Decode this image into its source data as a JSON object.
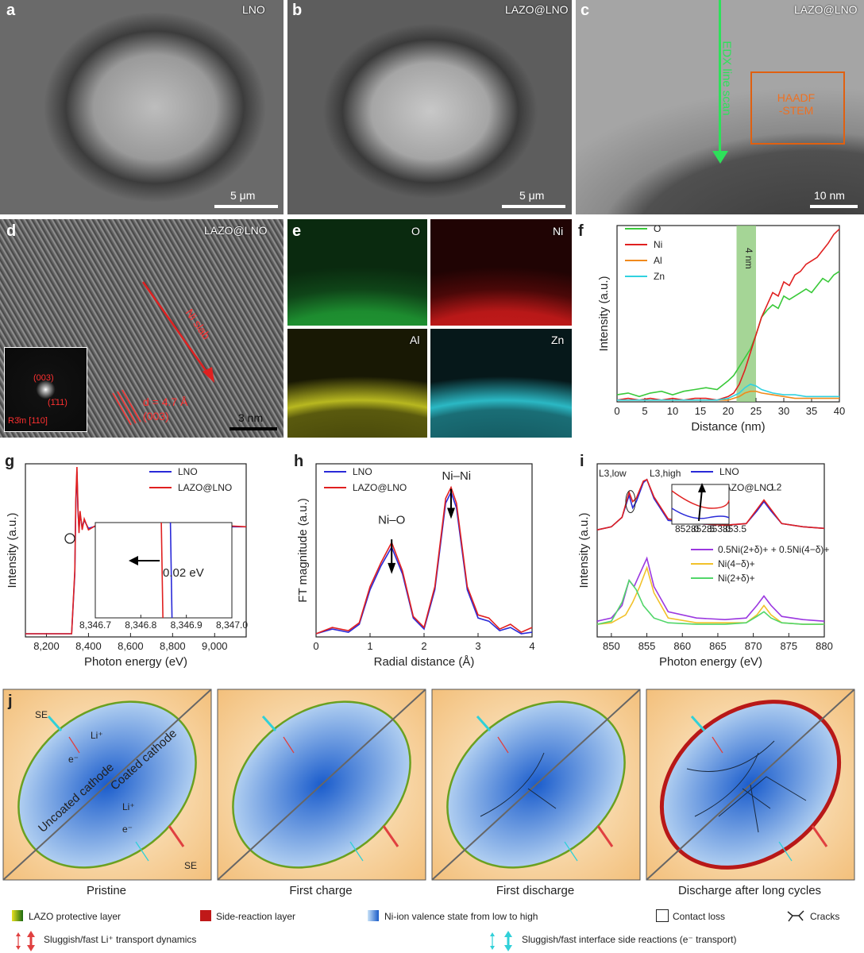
{
  "panels": {
    "a": {
      "label": "a",
      "tag": "LNO",
      "scale": "5 μm"
    },
    "b": {
      "label": "b",
      "tag": "LAZO@LNO",
      "scale": "5 μm"
    },
    "c": {
      "label": "c",
      "tag": "LAZO@LNO",
      "scale": "10 nm",
      "edx": "EDX line scan",
      "haadf": "HAADF\n-STEM"
    },
    "d": {
      "label": "d",
      "tag": "LAZO@LNO",
      "scale": "3 nm",
      "slab": "Ni slab",
      "dspacing": "d = 4.7 Å",
      "plane": "(003)",
      "inset_003": "(003)",
      "inset_111": "(1̄11)",
      "inset_zone": "R3̄m [110]"
    },
    "e": {
      "label": "e",
      "maps": [
        "O",
        "Ni",
        "Al",
        "Zn"
      ]
    },
    "f": {
      "label": "f",
      "band": "4 nm"
    },
    "g": {
      "label": "g",
      "inset_note": "0.02 eV"
    },
    "h": {
      "label": "h",
      "peak1": "Ni–O",
      "peak2": "Ni–Ni"
    },
    "i": {
      "label": "i",
      "l3low": "L3,low",
      "l3high": "L3,high",
      "l2": "L2"
    },
    "j": {
      "label": "j"
    }
  },
  "chart_data": [
    {
      "id": "f",
      "type": "line",
      "title": "",
      "xlabel": "Distance (nm)",
      "ylabel": "Intensity (a.u.)",
      "xlim": [
        0,
        40
      ],
      "ylim": [
        0,
        1
      ],
      "xticks": [
        0,
        5,
        10,
        15,
        20,
        25,
        30,
        35,
        40
      ],
      "highlight": [
        21.5,
        25
      ],
      "series": [
        {
          "name": "O",
          "color": "#3ac93a",
          "x": [
            0,
            2,
            4,
            6,
            8,
            10,
            12,
            14,
            16,
            18,
            20,
            21,
            22,
            23,
            24,
            25,
            26,
            27,
            28,
            29,
            30,
            31,
            32,
            33,
            34,
            35,
            36,
            37,
            38,
            39,
            40
          ],
          "y": [
            0.04,
            0.05,
            0.03,
            0.05,
            0.06,
            0.04,
            0.06,
            0.07,
            0.08,
            0.07,
            0.12,
            0.15,
            0.2,
            0.25,
            0.3,
            0.38,
            0.48,
            0.52,
            0.55,
            0.53,
            0.6,
            0.58,
            0.6,
            0.62,
            0.64,
            0.62,
            0.66,
            0.7,
            0.68,
            0.72,
            0.74
          ]
        },
        {
          "name": "Ni",
          "color": "#e02020",
          "x": [
            0,
            2,
            4,
            6,
            8,
            10,
            12,
            14,
            16,
            18,
            20,
            21,
            22,
            23,
            24,
            25,
            26,
            27,
            28,
            29,
            30,
            31,
            32,
            33,
            34,
            35,
            36,
            37,
            38,
            39,
            40
          ],
          "y": [
            0.01,
            0.02,
            0.01,
            0.02,
            0.01,
            0.02,
            0.01,
            0.02,
            0.02,
            0.01,
            0.03,
            0.05,
            0.1,
            0.18,
            0.28,
            0.38,
            0.48,
            0.55,
            0.62,
            0.6,
            0.68,
            0.66,
            0.72,
            0.74,
            0.78,
            0.8,
            0.82,
            0.86,
            0.9,
            0.95,
            0.98
          ]
        },
        {
          "name": "Al",
          "color": "#f08a1c",
          "x": [
            0,
            2,
            4,
            6,
            8,
            10,
            12,
            14,
            16,
            18,
            20,
            22,
            23,
            24,
            25,
            26,
            28,
            30,
            32,
            34,
            36,
            38,
            40
          ],
          "y": [
            0.01,
            0.01,
            0.01,
            0.01,
            0.01,
            0.01,
            0.01,
            0.01,
            0.01,
            0.01,
            0.01,
            0.03,
            0.05,
            0.06,
            0.06,
            0.05,
            0.04,
            0.03,
            0.02,
            0.02,
            0.02,
            0.02,
            0.02
          ]
        },
        {
          "name": "Zn",
          "color": "#31d2e0",
          "x": [
            0,
            2,
            4,
            6,
            8,
            10,
            12,
            14,
            16,
            18,
            20,
            22,
            23,
            24,
            25,
            26,
            28,
            30,
            32,
            34,
            36,
            38,
            40
          ],
          "y": [
            0.01,
            0.01,
            0.01,
            0.01,
            0.01,
            0.01,
            0.01,
            0.01,
            0.01,
            0.01,
            0.02,
            0.05,
            0.08,
            0.1,
            0.09,
            0.07,
            0.05,
            0.04,
            0.04,
            0.03,
            0.03,
            0.03,
            0.03
          ]
        }
      ]
    },
    {
      "id": "g",
      "type": "line",
      "xlabel": "Photon energy (eV)",
      "ylabel": "Intensity (a.u.)",
      "xlim": [
        8100,
        9150
      ],
      "ylim": [
        0,
        1.1
      ],
      "xticks": [
        8200,
        8400,
        8600,
        8800,
        9000
      ],
      "xtick_labels": [
        "8,200",
        "8,400",
        "8,600",
        "8,800",
        "9,000"
      ],
      "series": [
        {
          "name": "LNO",
          "color": "#2a2ad8",
          "x": [
            8100,
            8320,
            8335,
            8340,
            8345,
            8350,
            8355,
            8360,
            8370,
            8380,
            8400,
            8450,
            8500,
            8600,
            8800,
            9000,
            9150
          ],
          "y": [
            0.02,
            0.02,
            0.4,
            0.85,
            1.05,
            0.8,
            0.68,
            0.78,
            0.7,
            0.74,
            0.69,
            0.71,
            0.7,
            0.7,
            0.7,
            0.7,
            0.7
          ]
        },
        {
          "name": "LAZO@LNO",
          "color": "#e02020",
          "x": [
            8100,
            8320,
            8335,
            8340,
            8345,
            8350,
            8355,
            8360,
            8370,
            8380,
            8400,
            8450,
            8500,
            8600,
            8800,
            9000,
            9150
          ],
          "y": [
            0.02,
            0.02,
            0.42,
            0.88,
            1.08,
            0.82,
            0.66,
            0.8,
            0.68,
            0.75,
            0.68,
            0.72,
            0.69,
            0.71,
            0.7,
            0.71,
            0.7
          ]
        }
      ],
      "inset": {
        "xlim": [
          8346.7,
          8347.0
        ],
        "xticks": [
          8346.7,
          8346.8,
          8346.9,
          8347.0
        ],
        "xtick_labels": [
          "8,346.7",
          "8,346.8",
          "8,346.9",
          "8,347.0"
        ],
        "LNO_edge": 8346.865,
        "LAZO_edge": 8346.845
      }
    },
    {
      "id": "h",
      "type": "line",
      "xlabel": "Radial distance (Å)",
      "ylabel": "FT magnitude (a.u.)",
      "xlim": [
        0,
        4
      ],
      "ylim": [
        0,
        1.1
      ],
      "xticks": [
        0,
        1,
        2,
        3,
        4
      ],
      "series": [
        {
          "name": "LNO",
          "color": "#2a2ad8",
          "x": [
            0,
            0.3,
            0.6,
            0.8,
            1.0,
            1.2,
            1.4,
            1.6,
            1.8,
            2.0,
            2.2,
            2.4,
            2.5,
            2.6,
            2.8,
            3.0,
            3.2,
            3.4,
            3.6,
            3.8,
            4.0
          ],
          "y": [
            0.02,
            0.05,
            0.03,
            0.08,
            0.3,
            0.45,
            0.57,
            0.4,
            0.12,
            0.05,
            0.3,
            0.85,
            0.92,
            0.82,
            0.3,
            0.12,
            0.1,
            0.04,
            0.06,
            0.02,
            0.03
          ]
        },
        {
          "name": "LAZO@LNO",
          "color": "#e02020",
          "x": [
            0,
            0.3,
            0.6,
            0.8,
            1.0,
            1.2,
            1.4,
            1.6,
            1.8,
            2.0,
            2.2,
            2.4,
            2.5,
            2.6,
            2.8,
            3.0,
            3.2,
            3.4,
            3.6,
            3.8,
            4.0
          ],
          "y": [
            0.02,
            0.06,
            0.04,
            0.09,
            0.32,
            0.47,
            0.6,
            0.42,
            0.13,
            0.06,
            0.32,
            0.88,
            0.95,
            0.85,
            0.32,
            0.14,
            0.12,
            0.05,
            0.08,
            0.03,
            0.06
          ]
        }
      ]
    },
    {
      "id": "i",
      "type": "line",
      "xlabel": "Photon energy (eV)",
      "ylabel": "Intensity (a.u.)",
      "xlim": [
        848,
        880
      ],
      "ylim": [
        0,
        1.1
      ],
      "xticks": [
        850,
        855,
        860,
        865,
        870,
        875,
        880
      ],
      "series": [
        {
          "name": "LNO",
          "color": "#2a2ad8",
          "x": [
            848,
            850,
            851.5,
            852.5,
            853,
            853.5,
            854.5,
            855,
            856,
            858,
            862,
            866,
            869,
            870.5,
            871.5,
            872.5,
            874,
            877,
            880
          ],
          "y": [
            0.68,
            0.7,
            0.76,
            0.9,
            0.82,
            0.86,
            0.98,
            1.0,
            0.88,
            0.74,
            0.72,
            0.71,
            0.72,
            0.8,
            0.86,
            0.8,
            0.72,
            0.7,
            0.69
          ]
        },
        {
          "name": "LAZO@LNO",
          "color": "#e02020",
          "x": [
            848,
            850,
            851.5,
            852.5,
            853,
            853.5,
            854.5,
            855,
            856,
            858,
            862,
            866,
            869,
            870.5,
            871.5,
            872.5,
            874,
            877,
            880
          ],
          "y": [
            0.68,
            0.7,
            0.76,
            0.92,
            0.86,
            0.88,
            0.99,
            1.0,
            0.89,
            0.75,
            0.72,
            0.71,
            0.72,
            0.81,
            0.87,
            0.81,
            0.72,
            0.7,
            0.69
          ]
        },
        {
          "name": "0.5Ni(2+δ)+ + 0.5Ni(4−δ)+",
          "color": "#9b38e0",
          "x": [
            848,
            850,
            851.5,
            852.5,
            853.2,
            854,
            855,
            856,
            858,
            862,
            866,
            869,
            870.5,
            871.5,
            872.5,
            874,
            877,
            880
          ],
          "y": [
            0.1,
            0.12,
            0.2,
            0.36,
            0.32,
            0.4,
            0.5,
            0.32,
            0.16,
            0.12,
            0.11,
            0.12,
            0.2,
            0.26,
            0.2,
            0.13,
            0.11,
            0.1
          ]
        },
        {
          "name": "Ni(4−δ)+",
          "color": "#f2c12a",
          "x": [
            848,
            850,
            852,
            853,
            854,
            855,
            856,
            858,
            862,
            866,
            869,
            870.5,
            871.5,
            872.5,
            874,
            877,
            880
          ],
          "y": [
            0.08,
            0.09,
            0.14,
            0.22,
            0.32,
            0.44,
            0.28,
            0.12,
            0.09,
            0.09,
            0.09,
            0.14,
            0.2,
            0.14,
            0.09,
            0.08,
            0.08
          ]
        },
        {
          "name": "Ni(2+δ)+",
          "color": "#52d66a",
          "x": [
            848,
            850,
            851.5,
            852.5,
            853.5,
            854.5,
            856,
            858,
            862,
            866,
            869,
            870.5,
            871.5,
            872.5,
            874,
            877,
            880
          ],
          "y": [
            0.08,
            0.1,
            0.22,
            0.36,
            0.3,
            0.2,
            0.12,
            0.09,
            0.08,
            0.08,
            0.09,
            0.13,
            0.16,
            0.12,
            0.09,
            0.08,
            0.08
          ]
        }
      ]
    }
  ],
  "legend_f": [
    "O",
    "Ni",
    "Al",
    "Zn"
  ],
  "legend_gh": [
    "LNO",
    "LAZO@LNO"
  ],
  "inset_i_ticks": [
    "852.0",
    "852.5",
    "853.0",
    "853.5"
  ],
  "schematic": {
    "captions": [
      "Pristine",
      "First charge",
      "First discharge",
      "Discharge after long cycles"
    ],
    "labels": {
      "se": "SE",
      "li": "Li⁺",
      "e": "e⁻",
      "uncoated": "Uncoated cathode",
      "coated": "Coated cathode"
    }
  },
  "key": {
    "lazo": "LAZO protective layer",
    "side": "Side-reaction layer",
    "valence": "Ni-ion valence state from low to high",
    "contact": "Contact loss",
    "cracks": "Cracks",
    "li": "Sluggish/fast Li⁺ transport dynamics",
    "interface": "Sluggish/fast interface side reactions (e⁻ transport)"
  }
}
